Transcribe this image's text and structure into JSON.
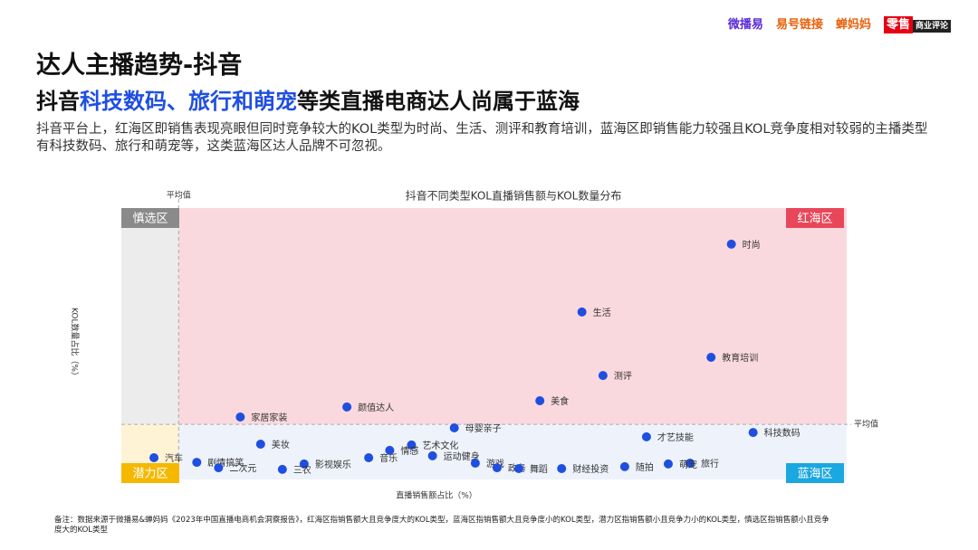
{
  "header": {
    "logos": [
      "微播易",
      "易号链接",
      "蝉妈妈",
      "零售",
      "商业评论"
    ],
    "title": "达人主播趋势-抖音",
    "subtitle": [
      "抖音",
      "科技数码、旅行和萌宠",
      "等类直播电商达人尚属于蓝海"
    ],
    "description": "抖音平台上，红海区即销售表现亮眼但同时竞争较大的KOL类型为时尚、生活、测评和教育培训，蓝海区即销售能力较强且KOL竞争度相对较弱的主播类型有科技数码、旅行和萌宠等，这类蓝海区达人品牌不可忽视。"
  },
  "chart_data": {
    "type": "scatter",
    "title": "抖音不同类型KOL直播销售额与KOL数量分布",
    "x_label": "直播销售额占比（%）",
    "y_label": "KOL数量占比（%）",
    "xlim": [
      0,
      100
    ],
    "ylim": [
      0,
      100
    ],
    "x_average": 7.9,
    "y_average": 20.3,
    "x_average_label": "平均值",
    "y_average_label": "平均值",
    "zones": {
      "top_left": "慎选区",
      "top_right": "红海区",
      "bottom_left": "潜力区",
      "bottom_right": "蓝海区"
    },
    "zone_colors": {
      "top_left": "#ececec",
      "top_right": "#fad9de",
      "bottom_left": "#fff3d6",
      "bottom_right": "#eef2fb"
    },
    "zone_label_colors": {
      "top_left": "#8a8a8a",
      "top_right": "#e8475a",
      "bottom_left": "#f5b800",
      "bottom_right": "#1ba7e0"
    },
    "color": "#1f4fe0",
    "points": [
      {
        "label": "时尚",
        "x": 84.1,
        "y": 86.7
      },
      {
        "label": "生活",
        "x": 63.5,
        "y": 61.7
      },
      {
        "label": "教育培训",
        "x": 81.3,
        "y": 45
      },
      {
        "label": "测评",
        "x": 66.4,
        "y": 38.3
      },
      {
        "label": "美食",
        "x": 57.7,
        "y": 29
      },
      {
        "label": "颜值达人",
        "x": 31.1,
        "y": 26.7
      },
      {
        "label": "家居家装",
        "x": 16.4,
        "y": 23
      },
      {
        "label": "母婴亲子",
        "x": 45.9,
        "y": 19
      },
      {
        "label": "科技数码",
        "x": 87.1,
        "y": 17.3
      },
      {
        "label": "才艺技能",
        "x": 72.4,
        "y": 15.7
      },
      {
        "label": "美妆",
        "x": 19.2,
        "y": 13
      },
      {
        "label": "艺术文化",
        "x": 40,
        "y": 12.7
      },
      {
        "label": "情感",
        "x": 37,
        "y": 10.7
      },
      {
        "label": "运动健身",
        "x": 42.9,
        "y": 8.7
      },
      {
        "label": "汽车",
        "x": 4.5,
        "y": 8
      },
      {
        "label": "音乐",
        "x": 34.1,
        "y": 8
      },
      {
        "label": "剧情搞笑",
        "x": 10.4,
        "y": 6.3
      },
      {
        "label": "影视娱乐",
        "x": 25.2,
        "y": 5.7
      },
      {
        "label": "游戏",
        "x": 48.8,
        "y": 6
      },
      {
        "label": "旅行",
        "x": 78.4,
        "y": 6
      },
      {
        "label": "萌宠",
        "x": 75.4,
        "y": 5.7
      },
      {
        "label": "二次元",
        "x": 13.4,
        "y": 4.3
      },
      {
        "label": "三农",
        "x": 22.2,
        "y": 3.7
      },
      {
        "label": "政务",
        "x": 51.8,
        "y": 4.3
      },
      {
        "label": "舞蹈",
        "x": 54.8,
        "y": 4
      },
      {
        "label": "财经投资",
        "x": 60.7,
        "y": 4
      },
      {
        "label": "随拍",
        "x": 69.4,
        "y": 4.7
      }
    ]
  },
  "footer": {
    "note": "备注：数据来源于微播易&蝉妈妈《2023年中国直播电商机会洞察报告》，红海区指销售额大且竞争度大的KOL类型，蓝海区指销售额大且竞争度小的KOL类型，潜力区指销售额小且竞争力小的KOL类型，慎选区指销售额小且竞争度大的KOL类型"
  }
}
